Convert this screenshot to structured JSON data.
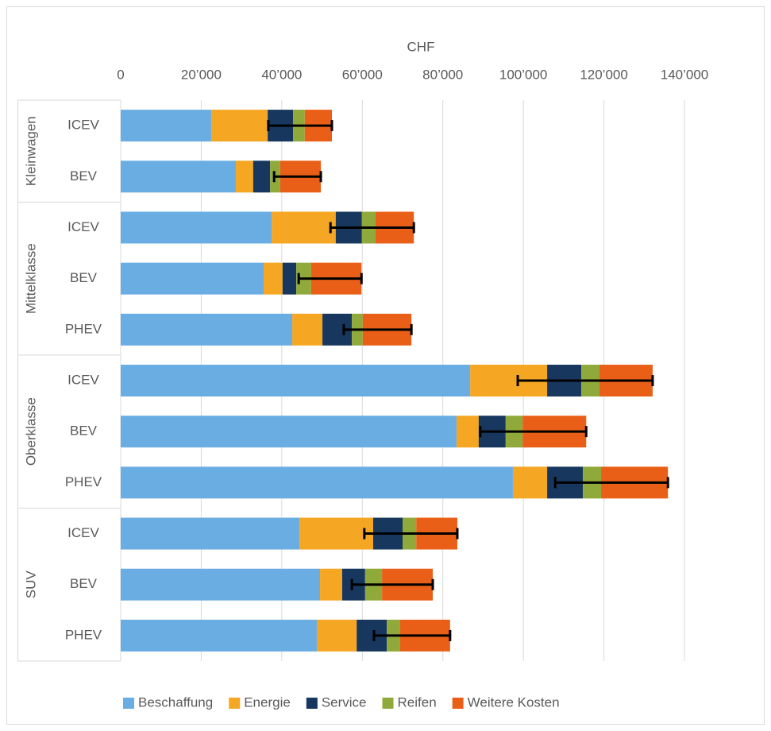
{
  "chart_data": {
    "type": "stacked-hbar",
    "xlabel": "CHF",
    "groups": [
      {
        "name": "Kleinwagen",
        "categories": [
          "ICEV",
          "BEV"
        ]
      },
      {
        "name": "Mittelklasse",
        "categories": [
          "ICEV",
          "BEV",
          "PHEV"
        ]
      },
      {
        "name": "Oberklasse",
        "categories": [
          "ICEV",
          "BEV",
          "PHEV"
        ]
      },
      {
        "name": "SUV",
        "categories": [
          "ICEV",
          "BEV",
          "PHEV"
        ]
      }
    ],
    "series": [
      {
        "name": "Beschaffung",
        "color": "#6aade3",
        "values": [
          22500,
          28600,
          37500,
          35500,
          42600,
          86800,
          83400,
          97400,
          44400,
          49500,
          48700
        ]
      },
      {
        "name": "Energie",
        "color": "#f5a623",
        "values": [
          14000,
          4300,
          15900,
          4700,
          7500,
          19100,
          5500,
          8500,
          18300,
          5500,
          9900
        ]
      },
      {
        "name": "Service",
        "color": "#17375e",
        "values": [
          6300,
          4200,
          6500,
          3400,
          7300,
          8500,
          6700,
          8900,
          7300,
          5700,
          7500
        ]
      },
      {
        "name": "Reifen",
        "color": "#8faa3a",
        "values": [
          2900,
          2500,
          3400,
          3700,
          2700,
          4500,
          4200,
          4500,
          3400,
          4200,
          3300
        ]
      },
      {
        "name": "Weitere Kosten",
        "color": "#ea5f17",
        "values": [
          6750,
          10100,
          9500,
          12500,
          12100,
          13200,
          15800,
          16600,
          10200,
          12600,
          12400
        ]
      }
    ],
    "error_minus": [
      15800,
      11600,
      20700,
      15600,
      16800,
      33500,
      26300,
      28000,
      23100,
      20100,
      18900
    ],
    "error_color": "#000000",
    "xlim": [
      0,
      140000
    ],
    "xticks": [
      0,
      {
        "value": 20000,
        "label": "20’000"
      },
      {
        "value": 40000,
        "label": "40’000"
      },
      {
        "value": 60000,
        "label": "60’000"
      },
      {
        "value": 80000,
        "label": "80’000"
      },
      {
        "value": 100000,
        "label": "100’000"
      },
      {
        "value": 120000,
        "label": "120’000"
      },
      {
        "value": 140000,
        "label": "140’000"
      }
    ],
    "grid": true,
    "legend": "bottom"
  }
}
